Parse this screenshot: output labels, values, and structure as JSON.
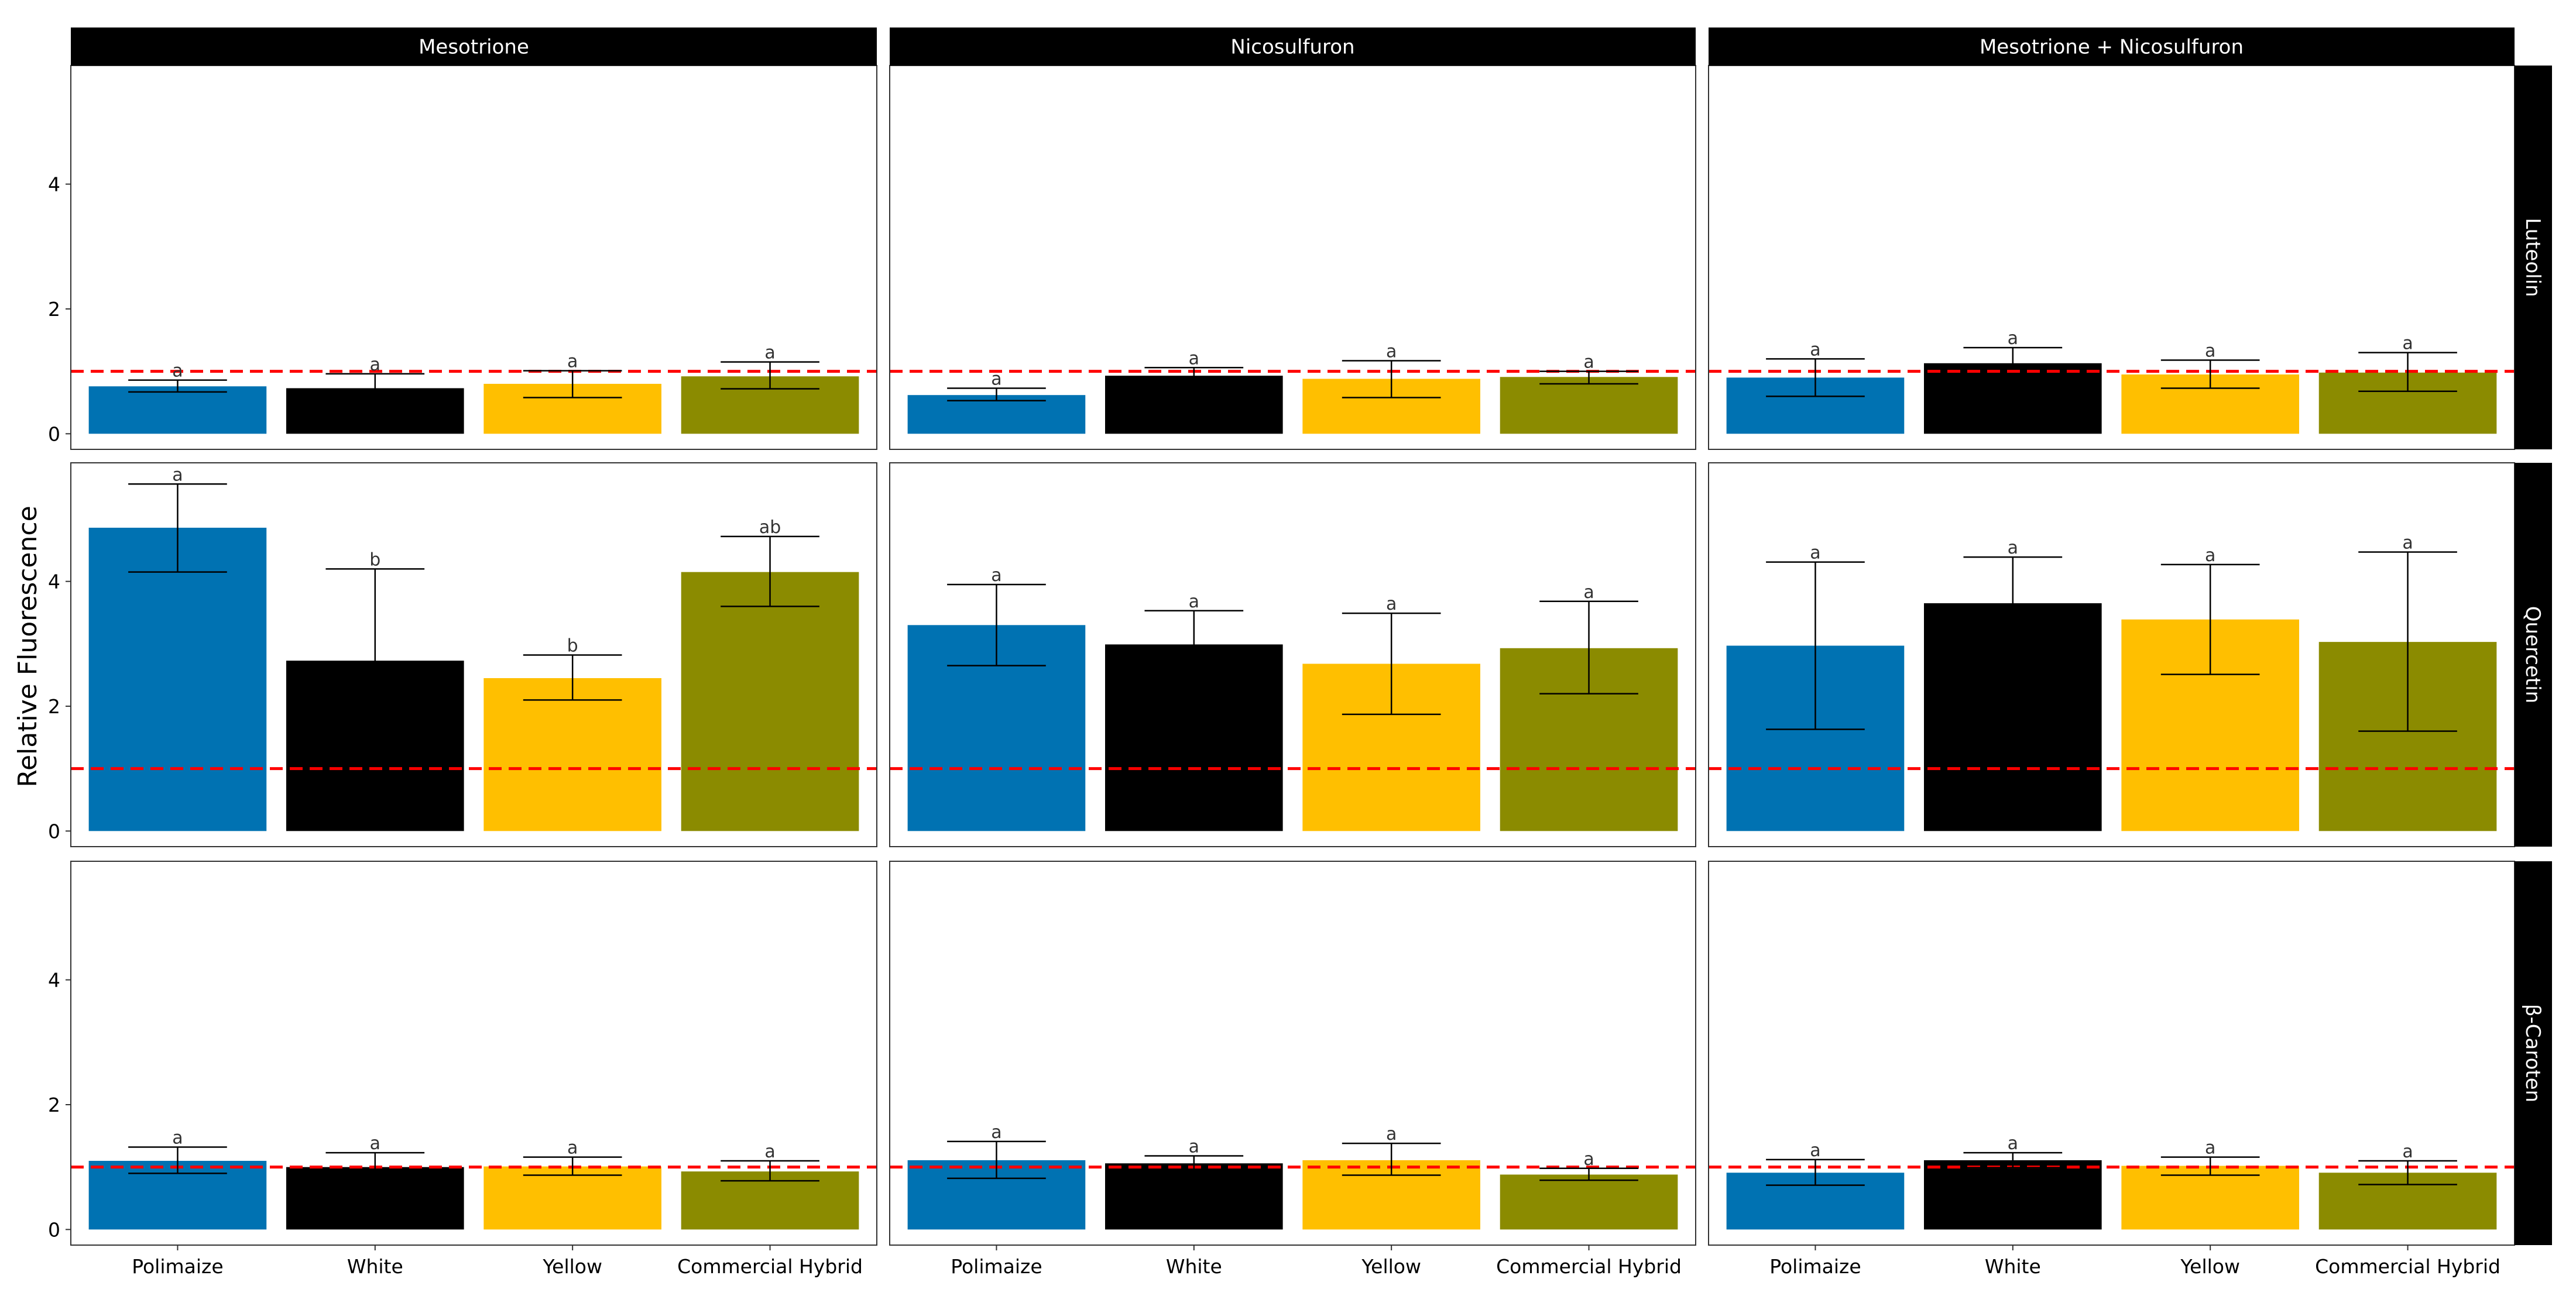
{
  "chart_data": {
    "type": "bar",
    "ylabel": "Relative Fluorescence",
    "xlabel": "",
    "ylim": [
      -0.25,
      5.9
    ],
    "yticks": [
      0,
      2,
      4
    ],
    "grid": false,
    "legend": "none",
    "reference_line": {
      "y": 1,
      "color": "#ff0000",
      "style": "dashed"
    },
    "categories": [
      "Polimaize",
      "White",
      "Yellow",
      "Commercial Hybrid"
    ],
    "category_colors": [
      "#0072b2",
      "#000000",
      "#ffbf00",
      "#8b8b00"
    ],
    "col_facets": [
      "Mesotrione",
      "Nicosulfuron",
      "Mesotrione + Nicosulfuron"
    ],
    "row_facets": [
      "Luteolin",
      "Quercetin",
      "β-Caroten"
    ],
    "panels": [
      {
        "row": "Luteolin",
        "col": "Mesotrione",
        "values": [
          0.76,
          0.73,
          0.8,
          0.92
        ],
        "err_low": [
          0.67,
          0.68,
          0.58,
          0.72
        ],
        "err_high": [
          0.86,
          0.96,
          1.01,
          1.15
        ],
        "labels": [
          "a",
          "a",
          "a",
          "a"
        ]
      },
      {
        "row": "Luteolin",
        "col": "Nicosulfuron",
        "values": [
          0.62,
          0.93,
          0.88,
          0.91
        ],
        "err_low": [
          0.53,
          0.91,
          0.58,
          0.8
        ],
        "err_high": [
          0.73,
          1.06,
          1.17,
          1.0
        ],
        "labels": [
          "a",
          "a",
          "a",
          "a"
        ]
      },
      {
        "row": "Luteolin",
        "col": "Mesotrione + Nicosulfuron",
        "values": [
          0.9,
          1.13,
          0.95,
          0.98
        ],
        "err_low": [
          0.6,
          1.05,
          0.73,
          0.68
        ],
        "err_high": [
          1.2,
          1.38,
          1.18,
          1.3
        ],
        "labels": [
          "a",
          "a",
          "a",
          "a"
        ]
      },
      {
        "row": "Quercetin",
        "col": "Mesotrione",
        "values": [
          4.86,
          2.73,
          2.45,
          4.15
        ],
        "err_low": [
          4.15,
          2.7,
          2.1,
          3.6
        ],
        "err_high": [
          5.56,
          4.2,
          2.82,
          4.72
        ],
        "labels": [
          "a",
          "b",
          "b",
          "ab"
        ]
      },
      {
        "row": "Quercetin",
        "col": "Nicosulfuron",
        "values": [
          3.3,
          2.99,
          2.68,
          2.93
        ],
        "err_low": [
          2.65,
          2.8,
          1.87,
          2.2
        ],
        "err_high": [
          3.95,
          3.53,
          3.49,
          3.68
        ],
        "labels": [
          "a",
          "a",
          "a",
          "a"
        ]
      },
      {
        "row": "Quercetin",
        "col": "Mesotrione + Nicosulfuron",
        "values": [
          2.97,
          3.65,
          3.39,
          3.03
        ],
        "err_low": [
          1.63,
          2.95,
          2.51,
          1.6
        ],
        "err_high": [
          4.31,
          4.39,
          4.27,
          4.47
        ],
        "labels": [
          "a",
          "a",
          "a",
          "a"
        ]
      },
      {
        "row": "β-Caroten",
        "col": "Mesotrione",
        "values": [
          1.1,
          1.0,
          1.01,
          0.93
        ],
        "err_low": [
          0.9,
          0.82,
          0.87,
          0.78
        ],
        "err_high": [
          1.32,
          1.23,
          1.16,
          1.1
        ],
        "labels": [
          "a",
          "a",
          "a",
          "a"
        ]
      },
      {
        "row": "β-Caroten",
        "col": "Nicosulfuron",
        "values": [
          1.11,
          1.06,
          1.11,
          0.88
        ],
        "err_low": [
          0.82,
          0.95,
          0.87,
          0.79
        ],
        "err_high": [
          1.41,
          1.18,
          1.38,
          0.98
        ],
        "labels": [
          "a",
          "a",
          "a",
          "a"
        ]
      },
      {
        "row": "β-Caroten",
        "col": "Mesotrione + Nicosulfuron",
        "values": [
          0.91,
          1.11,
          1.02,
          0.91
        ],
        "err_low": [
          0.71,
          0.99,
          0.87,
          0.72
        ],
        "err_high": [
          1.12,
          1.23,
          1.16,
          1.1
        ],
        "labels": [
          "a",
          "a",
          "a",
          "a"
        ]
      }
    ]
  }
}
